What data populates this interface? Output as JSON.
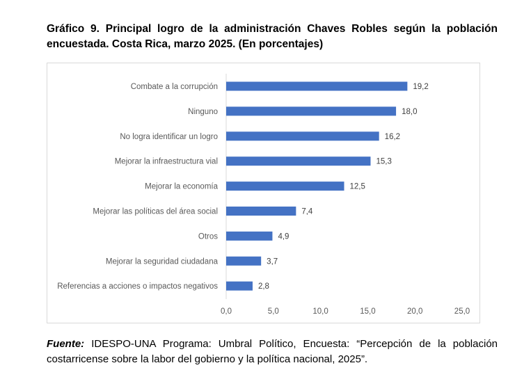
{
  "title": "Gráfico 9. Principal logro de la administración Chaves Robles según la población encuestada. Costa Rica, marzo 2025. (En porcentajes)",
  "source": {
    "label": "Fuente:",
    "text": " IDESPO-UNA Programa: Umbral Político, Encuesta: “Percepción de la población costarricense sobre la labor del gobierno y la política nacional, 2025”."
  },
  "chart_data": {
    "type": "bar",
    "orientation": "horizontal",
    "title": "",
    "xlabel": "",
    "ylabel": "",
    "categories": [
      "Combate a la corrupción",
      "Ninguno",
      "No logra identificar un logro",
      "Mejorar la infraestructura vial",
      "Mejorar la economía",
      "Mejorar las políticas del área social",
      "Otros",
      "Mejorar la seguridad ciudadana",
      "Referencias a acciones o impactos negativos"
    ],
    "values": [
      19.2,
      18.0,
      16.2,
      15.3,
      12.5,
      7.4,
      4.9,
      3.7,
      2.8
    ],
    "data_labels": [
      "19,2",
      "18,0",
      "16,2",
      "15,3",
      "12,5",
      "7,4",
      "4,9",
      "3,7",
      "2,8"
    ],
    "xlim": [
      0,
      25
    ],
    "x_ticks": [
      "0,0",
      "5,0",
      "10,0",
      "15,0",
      "20,0",
      "25,0"
    ],
    "grid": false,
    "legend": "none",
    "bar_color": "#4472C4"
  }
}
